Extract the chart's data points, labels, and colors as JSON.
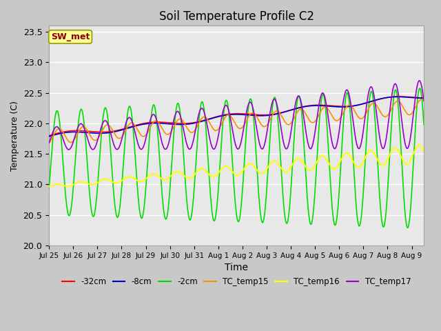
{
  "title": "Soil Temperature Profile C2",
  "xlabel": "Time",
  "ylabel": "Temperature (C)",
  "ylim": [
    20.0,
    23.6
  ],
  "yticks": [
    20.0,
    20.5,
    21.0,
    21.5,
    22.0,
    22.5,
    23.0,
    23.5
  ],
  "annotation_text": "SW_met",
  "annotation_color": "#8B0000",
  "annotation_bg": "#FFFF99",
  "annotation_edge": "#999900",
  "fig_bg": "#C8C8C8",
  "plot_bg": "#E8E8E8",
  "grid_color": "white",
  "series": {
    "-32cm": {
      "color": "#FF0000",
      "lw": 1.2
    },
    "-8cm": {
      "color": "#0000CC",
      "lw": 1.2
    },
    "-2cm": {
      "color": "#00DD00",
      "lw": 1.2
    },
    "TC_temp15": {
      "color": "#FF8C00",
      "lw": 1.2
    },
    "TC_temp16": {
      "color": "#FFFF00",
      "lw": 1.5
    },
    "TC_temp17": {
      "color": "#9900CC",
      "lw": 1.2
    }
  },
  "tick_labels": [
    "Jul 25",
    "Jul 26",
    "Jul 27",
    "Jul 28",
    "Jul 29",
    "Jul 30",
    "Jul 31",
    "Aug 1",
    "Aug 2",
    "Aug 3",
    "Aug 4",
    "Aug 5",
    "Aug 6",
    "Aug 7",
    "Aug 8",
    "Aug 9"
  ],
  "figsize": [
    6.4,
    4.8
  ],
  "dpi": 100
}
